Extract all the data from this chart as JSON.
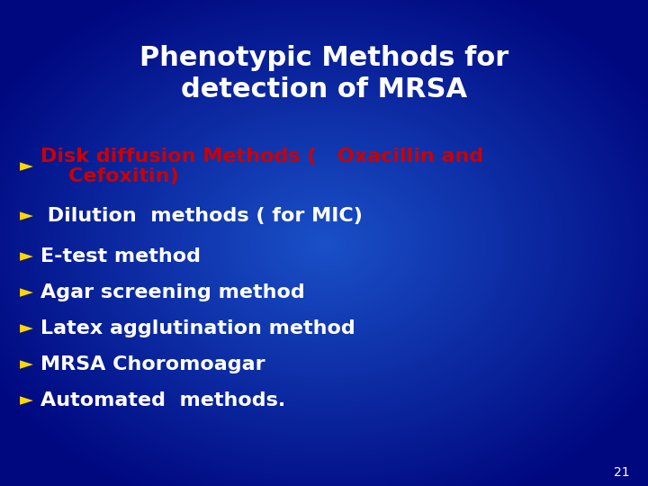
{
  "title_line1": "Phenotypic Methods for",
  "title_line2": "detection of MRSA",
  "title_color": "#FFFFFF",
  "title_fontsize": 22,
  "background_top": "#001070",
  "background_bottom": "#1a50c8",
  "background_center": "#1a50c8",
  "bullet_color": "#FFD700",
  "items": [
    {
      "text": "Disk diffusion Methods (   Oxacillin and\n    Cefoxitin)",
      "color": "#CC0000"
    },
    {
      "text": " Dilution  methods ( for MIC)",
      "color": "#FFFFFF"
    },
    {
      "text": "E-test method",
      "color": "#FFFFFF"
    },
    {
      "text": "Agar screening method",
      "color": "#FFFFFF"
    },
    {
      "text": "Latex agglutination method",
      "color": "#FFFFFF"
    },
    {
      "text": "MRSA Choromoagar",
      "color": "#FFFFFF"
    },
    {
      "text": "Automated  methods.",
      "color": "#FFFFFF"
    }
  ],
  "item_fontsize": 16,
  "page_number": "21",
  "page_number_color": "#FFFFFF",
  "page_number_fontsize": 10
}
